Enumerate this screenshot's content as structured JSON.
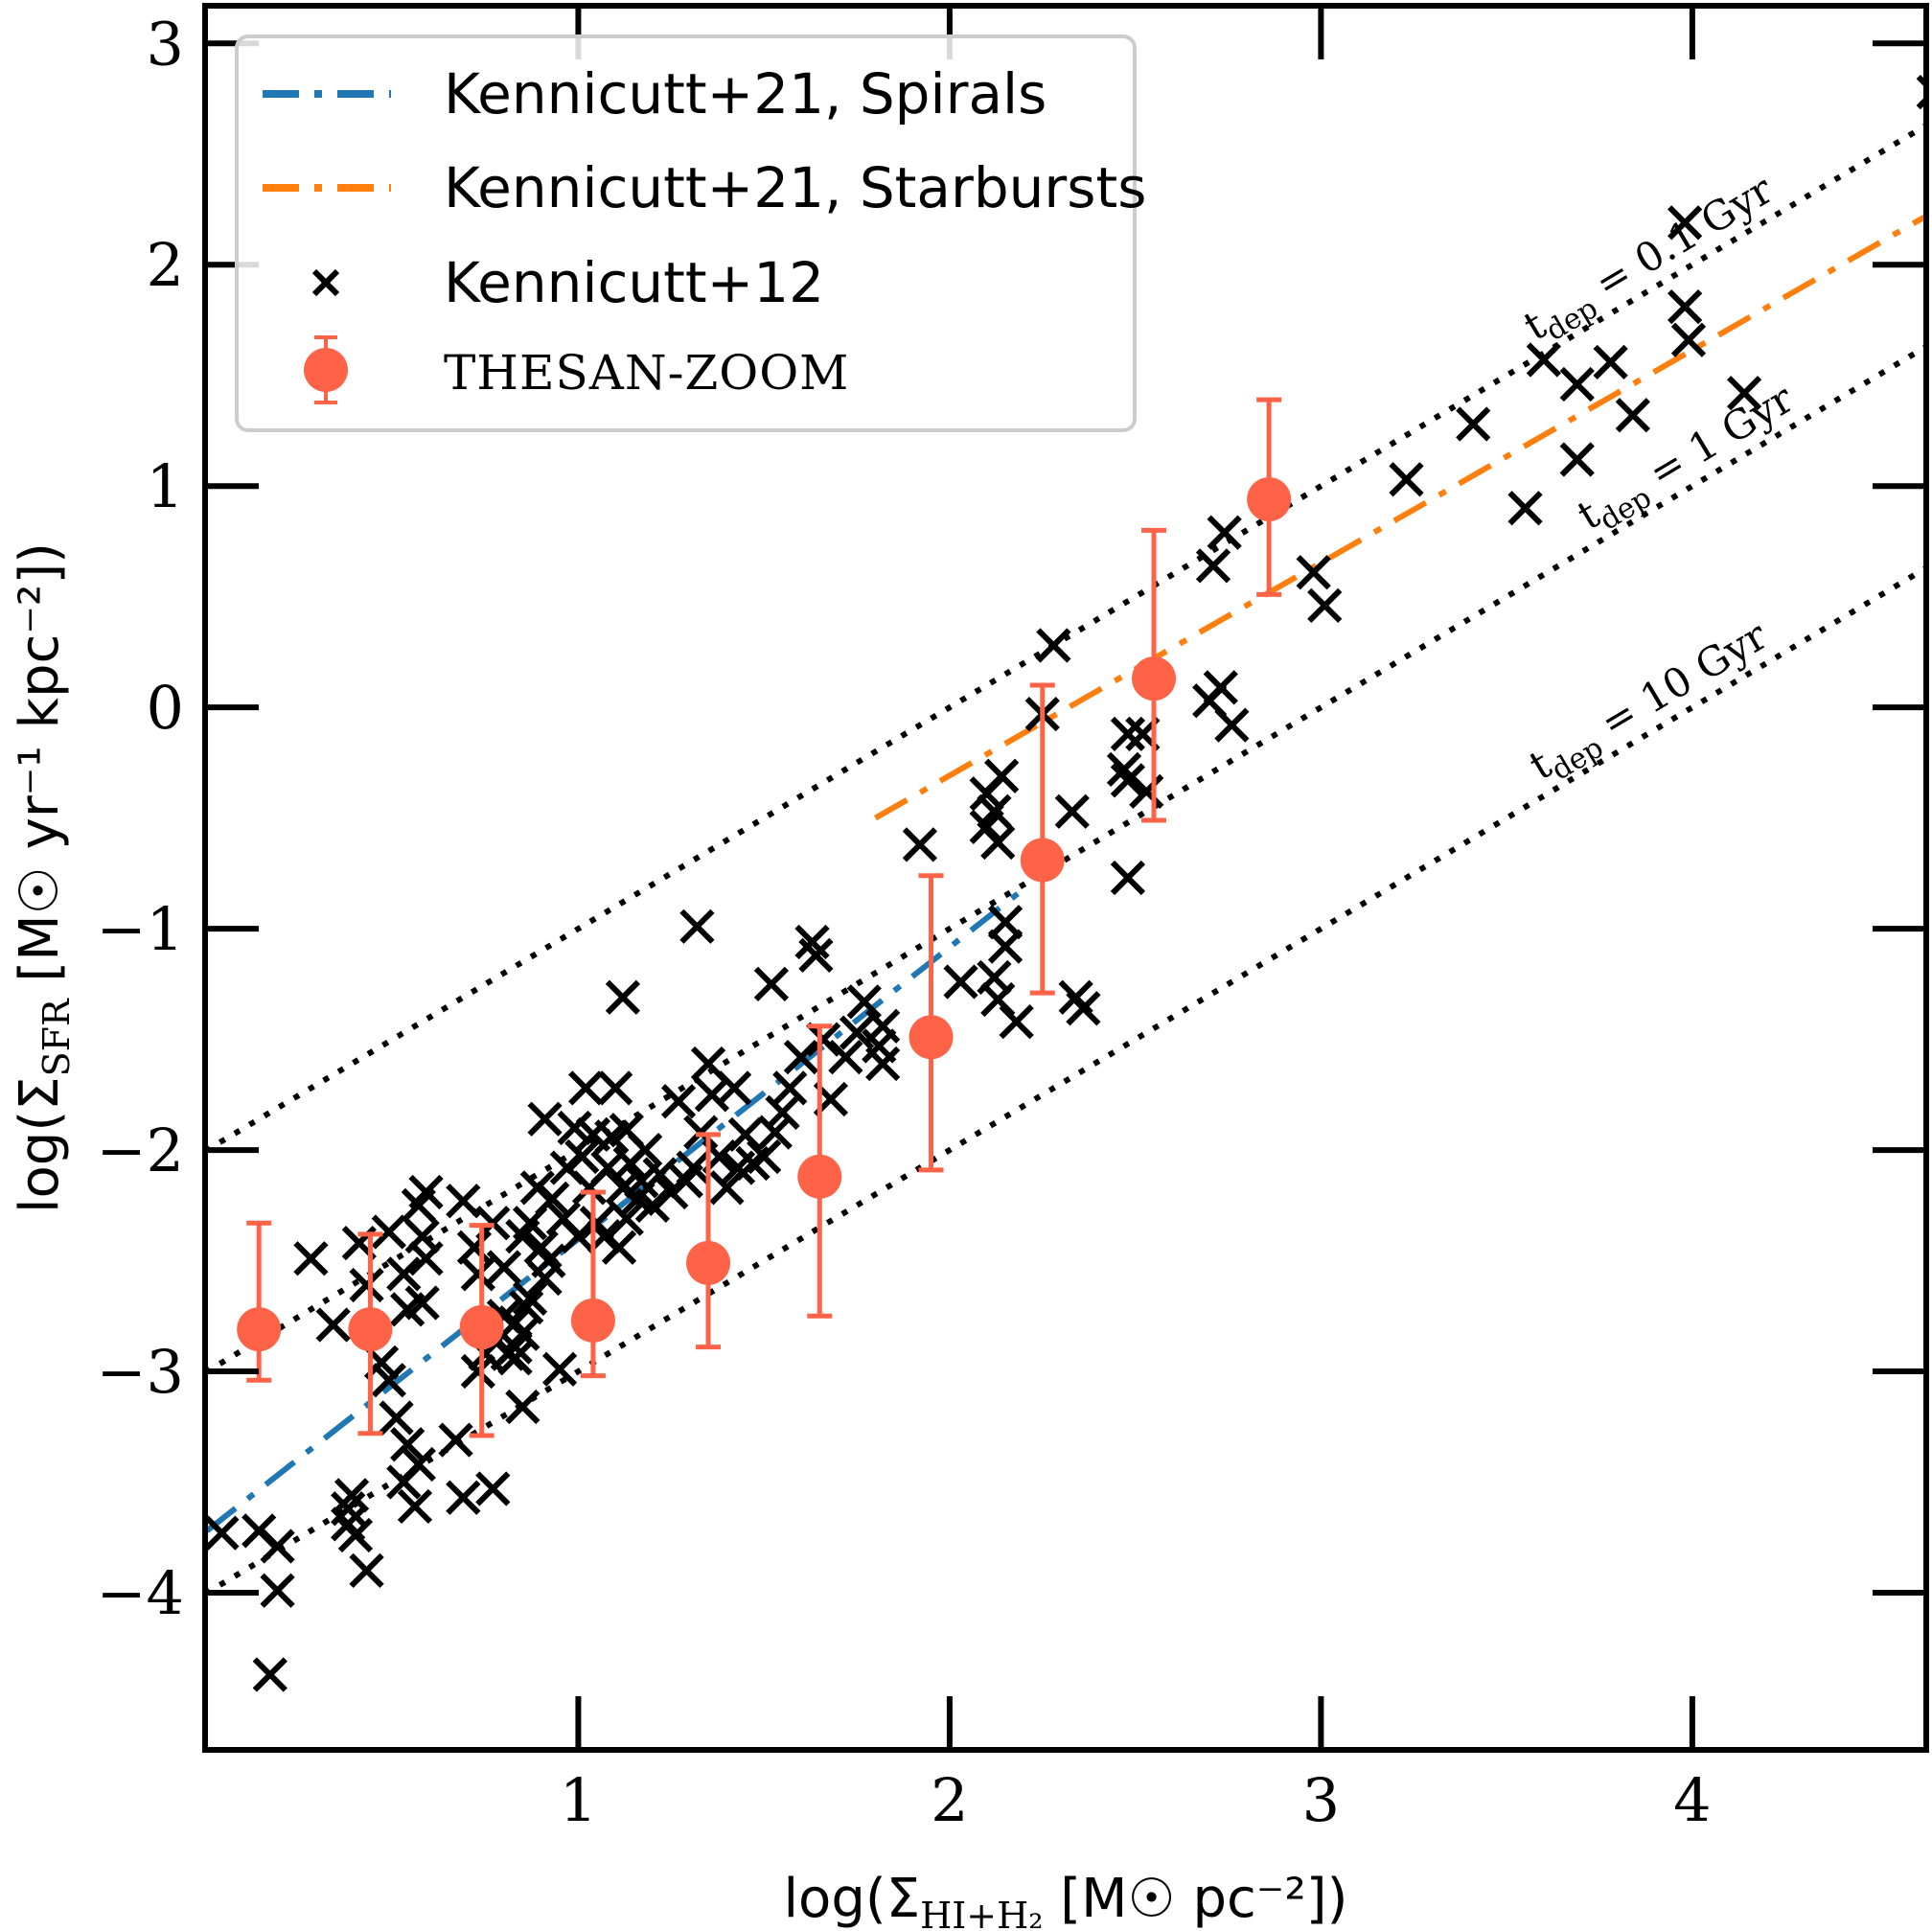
{
  "chart_data": {
    "type": "scatter",
    "title": "",
    "xlabel": "log(Σ_HI+H2 [M☉ pc^-2])",
    "ylabel": "log(Σ_SFR [M☉ yr^-1 kpc^-2])",
    "xlim": [
      -0.005,
      4.63
    ],
    "ylim": [
      -4.71,
      3.17
    ],
    "grid": false,
    "legend_position": "top-left",
    "x_ticks": [
      1,
      2,
      3,
      4
    ],
    "x_tick_labels": [
      "1",
      "2",
      "3",
      "4"
    ],
    "y_ticks": [
      3,
      2,
      1,
      0,
      -1,
      -2,
      -3,
      -4
    ],
    "y_tick_labels": [
      "3",
      "2",
      "1",
      "0",
      "−1",
      "−2",
      "−3",
      "−4"
    ],
    "xlabel_parts": {
      "pre": "log(Σ",
      "sub": "HI+H₂",
      "post": " [M☉ pc⁻²])"
    },
    "ylabel_parts": {
      "pre": "log(Σ",
      "sub": "SFR",
      "post": " [M☉ yr⁻¹ kpc⁻²])"
    },
    "legend": [
      {
        "label": "Kennicutt+21, Spirals",
        "style": "dashdot",
        "color": "#1f77b4"
      },
      {
        "label": "Kennicutt+21, Starbursts",
        "style": "dashdot",
        "color": "#ff7f0e"
      },
      {
        "label": "Kennicutt+12",
        "style": "x-marker",
        "color": "#000000"
      },
      {
        "label": "THESAN-ZOOM",
        "style": "errorbar-circle",
        "color": "#ff6347"
      }
    ],
    "depletion_lines": [
      {
        "label_pre": "t",
        "label_sub": "dep",
        "label_post": " = 0.1 Gyr",
        "offset": -2
      },
      {
        "label_pre": "t",
        "label_sub": "dep",
        "label_post": " = 1 Gyr",
        "offset": -3
      },
      {
        "label_pre": "t",
        "label_sub": "dep",
        "label_post": " = 10 Gyr",
        "offset": -4
      }
    ],
    "series": [
      {
        "name": "Kennicutt+21, Spirals",
        "type": "line",
        "color": "#1f77b4",
        "x": [
          0.0,
          2.2
        ],
        "y": [
          -3.72,
          -0.82
        ]
      },
      {
        "name": "Kennicutt+21, Starbursts",
        "type": "line",
        "color": "#ff7f0e",
        "x": [
          1.8,
          4.63
        ],
        "y": [
          -0.5,
          2.22
        ]
      },
      {
        "name": "THESAN-ZOOM",
        "type": "errorbar",
        "color": "#ff6347",
        "x": [
          0.14,
          0.44,
          0.74,
          1.04,
          1.35,
          1.65,
          1.95,
          2.25,
          2.55,
          2.86
        ],
        "y": [
          -2.81,
          -2.81,
          -2.8,
          -2.77,
          -2.51,
          -2.12,
          -1.49,
          -0.69,
          0.13,
          0.94
        ],
        "y_upper": [
          -2.33,
          -2.38,
          -2.34,
          -2.19,
          -1.93,
          -1.44,
          -0.76,
          0.1,
          0.8,
          1.39
        ],
        "y_lower": [
          -3.04,
          -3.28,
          -3.29,
          -3.02,
          -2.89,
          -2.75,
          -2.09,
          -1.29,
          -0.51,
          0.51
        ]
      },
      {
        "name": "Kennicutt+12",
        "type": "scatter",
        "color": "#000000",
        "points": [
          [
            0.04,
            -3.73
          ],
          [
            0.14,
            -3.72
          ],
          [
            0.19,
            -3.79
          ],
          [
            0.19,
            -3.99
          ],
          [
            0.17,
            -4.37
          ],
          [
            0.28,
            -2.49
          ],
          [
            0.34,
            -2.79
          ],
          [
            0.38,
            -3.69
          ],
          [
            0.38,
            -3.62
          ],
          [
            0.4,
            -3.74
          ],
          [
            0.43,
            -3.9
          ],
          [
            0.39,
            -3.56
          ],
          [
            0.41,
            -2.42
          ],
          [
            0.43,
            -2.61
          ],
          [
            0.47,
            -2.96
          ],
          [
            0.49,
            -3.04
          ],
          [
            0.51,
            -3.21
          ],
          [
            0.49,
            -2.37
          ],
          [
            0.53,
            -3.5
          ],
          [
            0.54,
            -3.33
          ],
          [
            0.57,
            -3.42
          ],
          [
            0.56,
            -3.61
          ],
          [
            0.53,
            -2.56
          ],
          [
            0.54,
            -2.72
          ],
          [
            0.58,
            -2.69
          ],
          [
            0.58,
            -2.39
          ],
          [
            0.57,
            -2.25
          ],
          [
            0.59,
            -2.19
          ],
          [
            0.59,
            -2.49
          ],
          [
            0.67,
            -3.31
          ],
          [
            0.69,
            -3.57
          ],
          [
            0.69,
            -2.23
          ],
          [
            0.73,
            -2.56
          ],
          [
            0.72,
            -2.44
          ],
          [
            0.73,
            -3.0
          ],
          [
            0.75,
            -2.92
          ],
          [
            0.77,
            -3.53
          ],
          [
            0.77,
            -2.33
          ],
          [
            0.8,
            -2.53
          ],
          [
            0.8,
            -2.75
          ],
          [
            0.81,
            -2.92
          ],
          [
            0.83,
            -2.89
          ],
          [
            0.83,
            -2.94
          ],
          [
            0.85,
            -3.16
          ],
          [
            0.83,
            -2.78
          ],
          [
            0.85,
            -2.83
          ],
          [
            0.86,
            -2.71
          ],
          [
            0.87,
            -2.67
          ],
          [
            0.85,
            -2.39
          ],
          [
            0.87,
            -2.33
          ],
          [
            0.89,
            -2.17
          ],
          [
            0.9,
            -2.44
          ],
          [
            0.91,
            -2.58
          ],
          [
            0.93,
            -2.22
          ],
          [
            0.91,
            -1.86
          ],
          [
            0.92,
            -2.5
          ],
          [
            0.95,
            -2.99
          ],
          [
            0.96,
            -2.31
          ],
          [
            0.97,
            -2.08
          ],
          [
            0.99,
            -1.9
          ],
          [
            1.0,
            -2.39
          ],
          [
            1.01,
            -2.03
          ],
          [
            1.02,
            -1.72
          ],
          [
            1.03,
            -2.17
          ],
          [
            1.04,
            -1.93
          ],
          [
            1.05,
            -2.33
          ],
          [
            1.07,
            -2.39
          ],
          [
            1.08,
            -2.08
          ],
          [
            1.09,
            -1.94
          ],
          [
            1.1,
            -1.72
          ],
          [
            1.11,
            -2.44
          ],
          [
            1.12,
            -2.17
          ],
          [
            1.13,
            -2.31
          ],
          [
            1.13,
            -1.91
          ],
          [
            1.14,
            -2.06
          ],
          [
            1.16,
            -2.22
          ],
          [
            1.17,
            -2.14
          ],
          [
            1.18,
            -2.0
          ],
          [
            1.2,
            -2.25
          ],
          [
            1.12,
            -1.31
          ],
          [
            1.22,
            -2.11
          ],
          [
            1.25,
            -2.19
          ],
          [
            1.27,
            -1.78
          ],
          [
            1.29,
            -2.14
          ],
          [
            1.31,
            -2.08
          ],
          [
            1.33,
            -1.92
          ],
          [
            1.35,
            -1.61
          ],
          [
            1.36,
            -1.75
          ],
          [
            1.38,
            -2.03
          ],
          [
            1.4,
            -2.17
          ],
          [
            1.42,
            -1.72
          ],
          [
            1.43,
            -2.08
          ],
          [
            1.45,
            -1.93
          ],
          [
            1.47,
            -2.06
          ],
          [
            1.5,
            -2.03
          ],
          [
            1.52,
            -1.25
          ],
          [
            1.53,
            -1.92
          ],
          [
            1.55,
            -1.83
          ],
          [
            1.57,
            -1.72
          ],
          [
            1.6,
            -1.58
          ],
          [
            1.63,
            -1.06
          ],
          [
            1.64,
            -1.12
          ],
          [
            1.66,
            -1.5
          ],
          [
            1.68,
            -1.77
          ],
          [
            1.72,
            -1.58
          ],
          [
            1.75,
            -1.47
          ],
          [
            1.77,
            -1.33
          ],
          [
            1.81,
            -1.53
          ],
          [
            1.82,
            -1.61
          ],
          [
            1.82,
            -1.44
          ],
          [
            1.32,
            -0.99
          ],
          [
            1.92,
            -0.62
          ],
          [
            2.03,
            -1.24
          ],
          [
            2.1,
            -0.39
          ],
          [
            2.1,
            -0.54
          ],
          [
            2.12,
            -0.47
          ],
          [
            2.13,
            -0.61
          ],
          [
            2.14,
            -0.31
          ],
          [
            2.15,
            -0.97
          ],
          [
            2.15,
            -1.08
          ],
          [
            2.12,
            -1.22
          ],
          [
            2.13,
            -1.32
          ],
          [
            2.18,
            -1.42
          ],
          [
            2.25,
            -0.03
          ],
          [
            2.28,
            0.28
          ],
          [
            2.33,
            -0.47
          ],
          [
            2.34,
            -1.31
          ],
          [
            2.36,
            -1.36
          ],
          [
            2.47,
            -0.28
          ],
          [
            2.48,
            -0.33
          ],
          [
            2.48,
            -0.12
          ],
          [
            2.48,
            -0.77
          ],
          [
            2.52,
            -0.12
          ],
          [
            2.53,
            -0.38
          ],
          [
            2.7,
            0.03
          ],
          [
            2.73,
            0.09
          ],
          [
            2.76,
            -0.08
          ],
          [
            2.71,
            0.64
          ],
          [
            2.74,
            0.79
          ],
          [
            2.98,
            0.61
          ],
          [
            3.01,
            0.46
          ],
          [
            3.23,
            1.03
          ],
          [
            3.41,
            1.28
          ],
          [
            3.55,
            0.9
          ],
          [
            3.6,
            1.57
          ],
          [
            3.69,
            1.46
          ],
          [
            3.69,
            1.12
          ],
          [
            3.78,
            1.56
          ],
          [
            3.84,
            1.32
          ],
          [
            3.98,
            2.19
          ],
          [
            3.98,
            1.81
          ],
          [
            3.99,
            1.66
          ],
          [
            4.14,
            1.42
          ],
          [
            4.65,
            2.78
          ]
        ]
      }
    ]
  }
}
